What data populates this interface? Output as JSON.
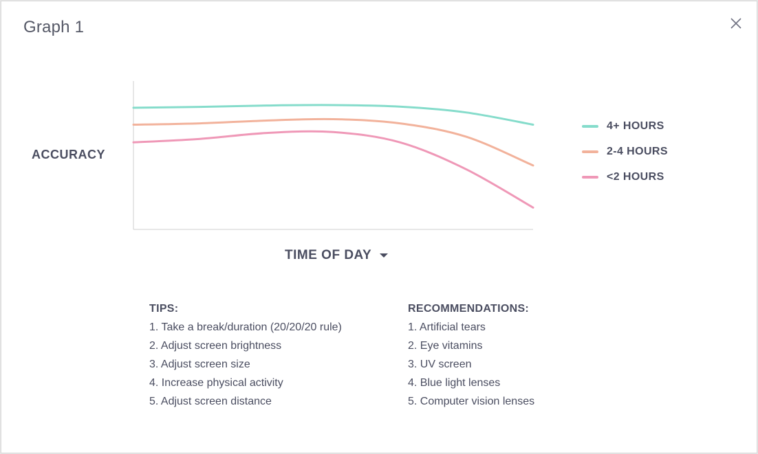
{
  "modal": {
    "title": "Graph 1",
    "close_icon": "close-icon"
  },
  "chart_data": {
    "type": "line",
    "title": "",
    "ylabel": "ACCURACY",
    "xlabel": "TIME OF DAY",
    "x": [
      0,
      1,
      2,
      3,
      4,
      5,
      6
    ],
    "xlim": [
      0,
      6
    ],
    "ylim": [
      0,
      100
    ],
    "grid": false,
    "legend": "right",
    "series": [
      {
        "name": "4+ HOURS",
        "color": "#85dccb",
        "values": [
          82,
          82.6,
          83.5,
          83.8,
          82.8,
          78.8,
          70.6
        ]
      },
      {
        "name": "2-4 HOURS",
        "color": "#f2b29b",
        "values": [
          70.6,
          71.5,
          73.4,
          74.3,
          71.5,
          62.4,
          43.1
        ]
      },
      {
        "name": "<2 HOURS",
        "color": "#ef98b7",
        "values": [
          58.7,
          61,
          65,
          65.6,
          58.7,
          40.4,
          14.7
        ]
      }
    ]
  },
  "x_axis_selector": {
    "label": "TIME OF DAY",
    "caret_icon": "caret-down-icon"
  },
  "tips": {
    "heading": "TIPS:",
    "items": [
      "1. Take a break/duration (20/20/20 rule)",
      "2. Adjust screen brightness",
      "3. Adjust screen size",
      "4. Increase physical activity",
      "5. Adjust screen distance"
    ]
  },
  "recommendations": {
    "heading": "RECOMMENDATIONS:",
    "items": [
      "1. Artificial tears",
      "2. Eye vitamins",
      "3. UV screen",
      "4. Blue light lenses",
      "5. Computer vision lenses"
    ]
  },
  "colors": {
    "text": "#4a4d60",
    "axis": "#cfcfcf"
  }
}
